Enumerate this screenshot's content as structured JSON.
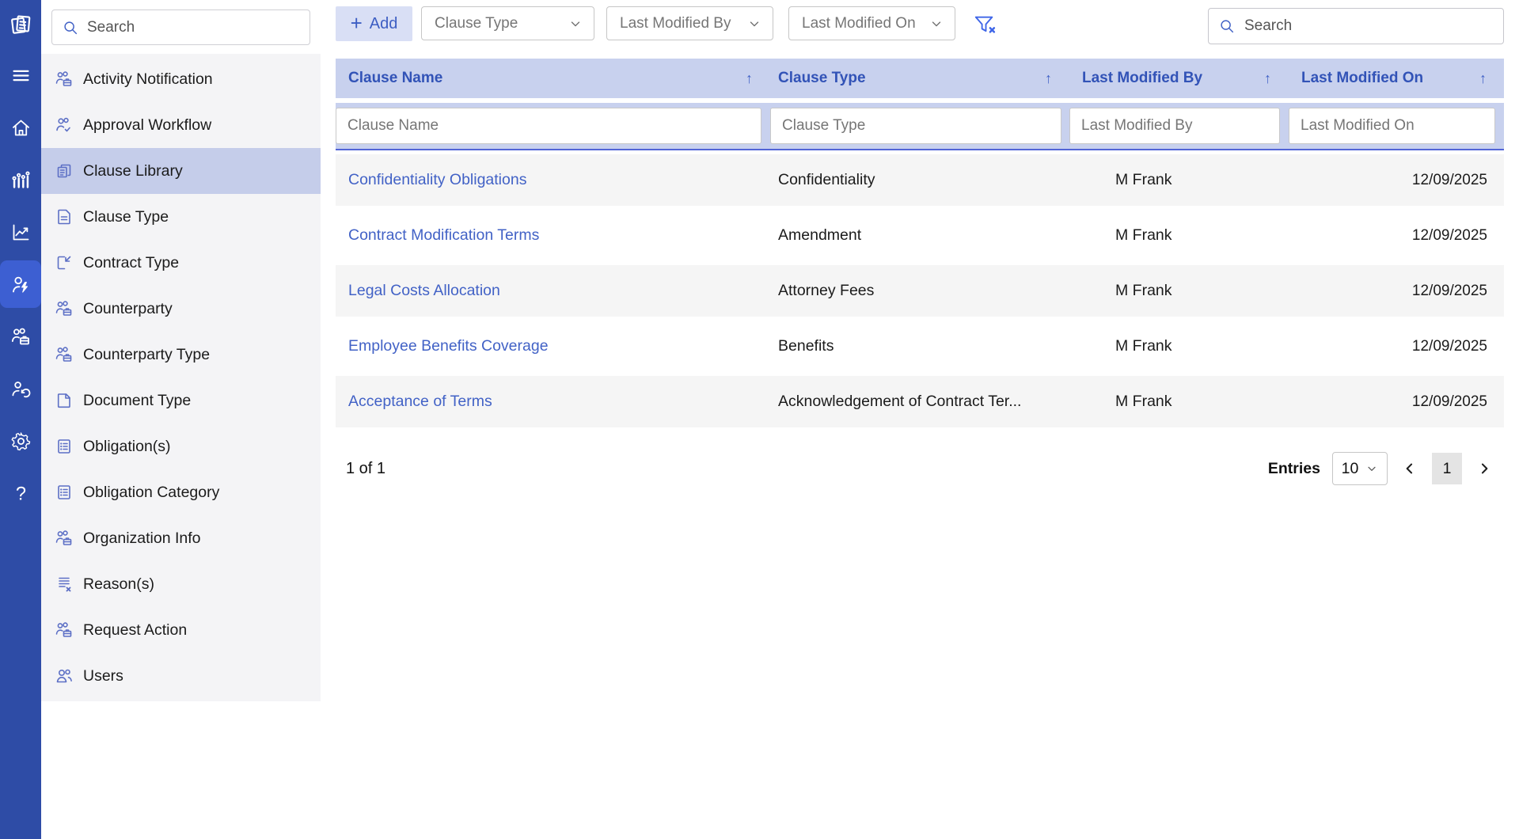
{
  "colors": {
    "rail": "#2E4CA6",
    "rail_active": "#3D5FD2",
    "header_bg": "#C8D1EE",
    "selected_item_bg": "#C5CDEA",
    "link": "#4262C6",
    "accent_text": "#3253B7"
  },
  "rail": {
    "logo_icon": "app-logo-icon",
    "items": [
      {
        "name": "menu",
        "icon": "menu-icon"
      },
      {
        "name": "home",
        "icon": "home-icon"
      },
      {
        "name": "analytics",
        "icon": "bar-chart-icon"
      },
      {
        "name": "reports",
        "icon": "line-chart-icon"
      },
      {
        "name": "admin-actions",
        "icon": "user-lightning-icon",
        "active": true
      },
      {
        "name": "workgroups",
        "icon": "people-briefcase-icon"
      },
      {
        "name": "user-sync",
        "icon": "people-sync-icon"
      },
      {
        "name": "settings",
        "icon": "gear-icon"
      },
      {
        "name": "help",
        "icon": "help-icon"
      }
    ]
  },
  "sidebar": {
    "search_placeholder": "Search",
    "items": [
      {
        "label": "Activity Notification",
        "icon": "people-briefcase-icon"
      },
      {
        "label": "Approval Workflow",
        "icon": "people-check-icon"
      },
      {
        "label": "Clause Library",
        "icon": "clause-library-icon",
        "selected": true
      },
      {
        "label": "Clause Type",
        "icon": "document-icon"
      },
      {
        "label": "Contract Type",
        "icon": "contract-type-icon"
      },
      {
        "label": "Counterparty",
        "icon": "people-briefcase-icon"
      },
      {
        "label": "Counterparty Type",
        "icon": "people-briefcase-icon"
      },
      {
        "label": "Document Type",
        "icon": "page-icon"
      },
      {
        "label": "Obligation(s)",
        "icon": "list-icon"
      },
      {
        "label": "Obligation Category",
        "icon": "list-icon"
      },
      {
        "label": "Organization Info",
        "icon": "people-briefcase-icon"
      },
      {
        "label": "Reason(s)",
        "icon": "list-x-icon"
      },
      {
        "label": "Request Action",
        "icon": "people-briefcase-icon"
      },
      {
        "label": "Users",
        "icon": "users-icon"
      }
    ]
  },
  "toolbar": {
    "add_label": "Add",
    "dropdowns": [
      {
        "label": "Clause Type"
      },
      {
        "label": "Last Modified By"
      },
      {
        "label": "Last Modified On"
      }
    ],
    "clear_filter_icon": "filter-clear-icon",
    "search_placeholder": "Search"
  },
  "table": {
    "columns": [
      {
        "label": "Clause Name",
        "sort_indicator": "↑"
      },
      {
        "label": "Clause Type",
        "sort_indicator": "↑"
      },
      {
        "label": "Last Modified By",
        "sort_indicator": "↑"
      },
      {
        "label": "Last Modified On",
        "sort_indicator": "↑"
      }
    ],
    "filter_placeholders": [
      "Clause Name",
      "Clause Type",
      "Last Modified By",
      "Last Modified On"
    ],
    "rows": [
      {
        "clause_name": "Confidentiality Obligations",
        "clause_type": "Confidentiality",
        "modified_by": "M Frank",
        "modified_on": "12/09/2025"
      },
      {
        "clause_name": "Contract Modification Terms",
        "clause_type": "Amendment",
        "modified_by": "M Frank",
        "modified_on": "12/09/2025"
      },
      {
        "clause_name": "Legal Costs Allocation",
        "clause_type": "Attorney Fees",
        "modified_by": "M Frank",
        "modified_on": "12/09/2025"
      },
      {
        "clause_name": "Employee Benefits Coverage",
        "clause_type": "Benefits",
        "modified_by": "M Frank",
        "modified_on": "12/09/2025"
      },
      {
        "clause_name": "Acceptance of Terms",
        "clause_type": "Acknowledgement of Contract Ter...",
        "modified_by": "M Frank",
        "modified_on": "12/09/2025"
      }
    ]
  },
  "pagination": {
    "page_info": "1 of 1",
    "entries_label": "Entries",
    "entries_value": "10",
    "current_page": "1"
  }
}
